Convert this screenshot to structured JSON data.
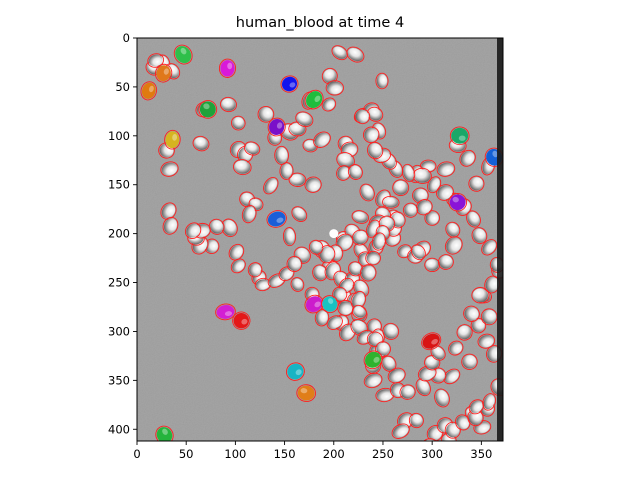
{
  "chart_data": {
    "type": "image",
    "title": "human_blood at time 4",
    "xlabel": "",
    "ylabel": "",
    "xlim": [
      0,
      372
    ],
    "ylim": [
      412,
      0
    ],
    "xticks": [
      0,
      50,
      100,
      150,
      200,
      250,
      300,
      350
    ],
    "yticks": [
      0,
      50,
      100,
      150,
      200,
      250,
      300,
      350,
      400
    ],
    "image": {
      "description": "grayscale microscopy frame of blood cells; each detected cell outlined in red, tracked cells filled with a colour",
      "background": "#a5a5a5",
      "outline_color": "#ff2020"
    },
    "outlined_cells": [
      [
        16,
        31
      ],
      [
        27,
        26
      ],
      [
        36,
        34
      ],
      [
        19,
        23
      ],
      [
        30,
        115
      ],
      [
        33,
        134
      ],
      [
        32,
        177
      ],
      [
        65,
        108
      ],
      [
        68,
        73
      ],
      [
        93,
        68
      ],
      [
        103,
        87
      ],
      [
        103,
        114
      ],
      [
        110,
        119
      ],
      [
        117,
        113
      ],
      [
        107,
        132
      ],
      [
        112,
        165
      ],
      [
        131,
        78
      ],
      [
        140,
        102
      ],
      [
        155,
        96
      ],
      [
        163,
        93
      ],
      [
        170,
        83
      ],
      [
        175,
        64
      ],
      [
        195,
        68
      ],
      [
        206,
        15
      ],
      [
        222,
        17
      ],
      [
        196,
        39
      ],
      [
        201,
        51
      ],
      [
        176,
        110
      ],
      [
        188,
        104
      ],
      [
        212,
        108
      ],
      [
        228,
        79
      ],
      [
        238,
        74
      ],
      [
        249,
        44
      ],
      [
        242,
        78
      ],
      [
        246,
        95
      ],
      [
        229,
        80
      ],
      [
        216,
        114
      ],
      [
        212,
        125
      ],
      [
        210,
        138
      ],
      [
        222,
        137
      ],
      [
        234,
        158
      ],
      [
        250,
        164
      ],
      [
        227,
        183
      ],
      [
        210,
        205
      ],
      [
        219,
        198
      ],
      [
        188,
        216
      ],
      [
        228,
        218
      ],
      [
        196,
        234
      ],
      [
        186,
        240
      ],
      [
        199,
        238
      ],
      [
        208,
        247
      ],
      [
        211,
        265
      ],
      [
        208,
        291
      ],
      [
        220,
        269
      ],
      [
        219,
        246
      ],
      [
        214,
        301
      ],
      [
        226,
        283
      ],
      [
        241,
        295
      ],
      [
        245,
        306
      ],
      [
        245,
        320
      ],
      [
        258,
        300
      ],
      [
        240,
        335
      ],
      [
        240,
        350
      ],
      [
        252,
        365
      ],
      [
        265,
        360
      ],
      [
        273,
        391
      ],
      [
        284,
        391
      ],
      [
        268,
        402
      ],
      [
        303,
        404
      ],
      [
        313,
        396
      ],
      [
        298,
        417
      ],
      [
        317,
        412
      ],
      [
        321,
        401
      ],
      [
        331,
        393
      ],
      [
        351,
        398
      ],
      [
        338,
        331
      ],
      [
        356,
        379
      ],
      [
        320,
        346
      ],
      [
        310,
        368
      ],
      [
        306,
        345
      ],
      [
        341,
        383
      ],
      [
        344,
        388
      ],
      [
        345,
        377
      ],
      [
        358,
        372
      ],
      [
        368,
        357
      ],
      [
        363,
        323
      ],
      [
        355,
        310
      ],
      [
        347,
        294
      ],
      [
        358,
        285
      ],
      [
        352,
        264
      ],
      [
        368,
        238
      ],
      [
        345,
        149
      ],
      [
        357,
        131
      ],
      [
        336,
        123
      ],
      [
        326,
        110
      ],
      [
        314,
        134
      ],
      [
        296,
        131
      ],
      [
        284,
        139
      ],
      [
        268,
        153
      ],
      [
        288,
        161
      ],
      [
        258,
        168
      ],
      [
        261,
        183
      ],
      [
        250,
        180
      ],
      [
        245,
        189
      ],
      [
        227,
        204
      ],
      [
        211,
        209
      ],
      [
        202,
        220
      ],
      [
        193,
        221
      ],
      [
        182,
        214
      ],
      [
        168,
        222
      ],
      [
        155,
        203
      ],
      [
        165,
        180
      ],
      [
        179,
        150
      ],
      [
        163,
        145
      ],
      [
        152,
        136
      ],
      [
        147,
        120
      ],
      [
        136,
        151
      ],
      [
        121,
        170
      ],
      [
        114,
        180
      ],
      [
        94,
        194
      ],
      [
        81,
        193
      ],
      [
        76,
        213
      ],
      [
        64,
        212
      ],
      [
        60,
        205
      ],
      [
        66,
        197
      ],
      [
        57,
        197
      ],
      [
        34,
        192
      ],
      [
        101,
        219
      ],
      [
        103,
        233
      ],
      [
        124,
        245
      ],
      [
        120,
        237
      ],
      [
        128,
        252
      ],
      [
        142,
        248
      ],
      [
        152,
        241
      ],
      [
        160,
        231
      ],
      [
        163,
        252
      ],
      [
        178,
        262
      ],
      [
        188,
        286
      ],
      [
        201,
        291
      ],
      [
        212,
        276
      ],
      [
        213,
        253
      ],
      [
        206,
        262
      ],
      [
        222,
        236
      ],
      [
        240,
        195
      ],
      [
        232,
        226
      ],
      [
        243,
        214
      ],
      [
        250,
        203
      ],
      [
        260,
        205
      ],
      [
        261,
        195
      ],
      [
        272,
        218
      ],
      [
        283,
        223
      ],
      [
        290,
        216
      ],
      [
        286,
        219
      ],
      [
        300,
        232
      ],
      [
        314,
        229
      ],
      [
        322,
        212
      ],
      [
        321,
        196
      ],
      [
        300,
        184
      ],
      [
        292,
        173
      ],
      [
        278,
        176
      ],
      [
        265,
        186
      ],
      [
        254,
        190
      ],
      [
        250,
        199
      ],
      [
        246,
        208
      ],
      [
        240,
        225
      ],
      [
        235,
        240
      ],
      [
        228,
        256
      ],
      [
        225,
        268
      ],
      [
        226,
        280
      ],
      [
        226,
        296
      ],
      [
        232,
        306
      ],
      [
        242,
        308
      ],
      [
        250,
        318
      ],
      [
        256,
        333
      ],
      [
        264,
        345
      ],
      [
        275,
        362
      ],
      [
        291,
        357
      ],
      [
        295,
        343
      ],
      [
        300,
        332
      ],
      [
        306,
        322
      ],
      [
        324,
        317
      ],
      [
        333,
        301
      ],
      [
        340,
        282
      ],
      [
        349,
        263
      ],
      [
        361,
        252
      ],
      [
        366,
        232
      ],
      [
        358,
        214
      ],
      [
        348,
        202
      ],
      [
        342,
        185
      ],
      [
        332,
        173
      ],
      [
        322,
        165
      ],
      [
        313,
        158
      ],
      [
        302,
        150
      ],
      [
        290,
        141
      ],
      [
        276,
        138
      ],
      [
        263,
        134
      ],
      [
        256,
        126
      ],
      [
        249,
        120
      ],
      [
        242,
        115
      ],
      [
        238,
        99
      ]
    ],
    "tracked_cells": [
      {
        "x": 47,
        "y": 17,
        "color": "#2fbf4a"
      },
      {
        "x": 92,
        "y": 31,
        "color": "#d919d9"
      },
      {
        "x": 27,
        "y": 36,
        "color": "#e0781a"
      },
      {
        "x": 12,
        "y": 54,
        "color": "#e07a10"
      },
      {
        "x": 155,
        "y": 47,
        "color": "#1414ee"
      },
      {
        "x": 180,
        "y": 63,
        "color": "#1fbd3d"
      },
      {
        "x": 72,
        "y": 73,
        "color": "#1fa23a"
      },
      {
        "x": 142,
        "y": 91,
        "color": "#7a10c9"
      },
      {
        "x": 36,
        "y": 104,
        "color": "#d6b420"
      },
      {
        "x": 328,
        "y": 100,
        "color": "#1aa868"
      },
      {
        "x": 363,
        "y": 122,
        "color": "#1460d6"
      },
      {
        "x": 326,
        "y": 168,
        "color": "#8a14d8"
      },
      {
        "x": 142,
        "y": 185,
        "color": "#1a5ed8"
      },
      {
        "x": 90,
        "y": 280,
        "color": "#d31fd3"
      },
      {
        "x": 106,
        "y": 289,
        "color": "#e41818"
      },
      {
        "x": 180,
        "y": 272,
        "color": "#cc1ccc"
      },
      {
        "x": 196,
        "y": 272,
        "color": "#19c2c2"
      },
      {
        "x": 299,
        "y": 310,
        "color": "#d91414"
      },
      {
        "x": 240,
        "y": 329,
        "color": "#2eb32e"
      },
      {
        "x": 161,
        "y": 341,
        "color": "#18b4c4"
      },
      {
        "x": 172,
        "y": 363,
        "color": "#e07e18"
      },
      {
        "x": 28,
        "y": 406,
        "color": "#25b43c"
      }
    ],
    "highlights": [
      {
        "x": 200,
        "y": 200,
        "color": "#ffffff"
      }
    ],
    "grid": false,
    "legend": "none"
  }
}
